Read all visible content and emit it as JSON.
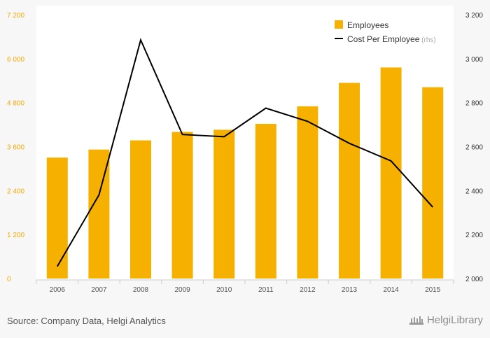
{
  "chart_data": {
    "type": "bar+line",
    "categories": [
      "2006",
      "2007",
      "2008",
      "2009",
      "2010",
      "2011",
      "2012",
      "2013",
      "2014",
      "2015"
    ],
    "series": [
      {
        "name": "Employees",
        "type": "bar",
        "axis": "left",
        "values": [
          3300,
          3520,
          3770,
          4000,
          4060,
          4220,
          4700,
          5340,
          5760,
          5220
        ]
      },
      {
        "name": "Cost Per Employee",
        "suffix": "(rhs)",
        "type": "line",
        "axis": "right",
        "values": [
          2055,
          2380,
          3085,
          2655,
          2645,
          2775,
          2715,
          2615,
          2535,
          2325
        ]
      }
    ],
    "left_axis": {
      "min": 0,
      "max": 7200,
      "ticks": [
        {
          "value": 0,
          "label": "0"
        },
        {
          "value": 1200,
          "label": "1 200"
        },
        {
          "value": 2400,
          "label": "2 400"
        },
        {
          "value": 3600,
          "label": "3 600"
        },
        {
          "value": 4800,
          "label": "4 800"
        },
        {
          "value": 6000,
          "label": "6 000"
        },
        {
          "value": 7200,
          "label": "7 200"
        }
      ]
    },
    "right_axis": {
      "min": 2000,
      "max": 3200,
      "ticks": [
        {
          "value": 2000,
          "label": "2 000"
        },
        {
          "value": 2200,
          "label": "2 200"
        },
        {
          "value": 2400,
          "label": "2 400"
        },
        {
          "value": 2600,
          "label": "2 600"
        },
        {
          "value": 2800,
          "label": "2 800"
        },
        {
          "value": 3000,
          "label": "3 000"
        },
        {
          "value": 3200,
          "label": "3 200"
        }
      ]
    },
    "legend_position": "top-right",
    "grid": false,
    "colors": {
      "bar": "#f5b000",
      "line": "#000000",
      "left_tick": "#f5a800",
      "right_tick": "#333333",
      "rhs_note": "#aaaaaa"
    }
  },
  "footer": {
    "source": "Source: Company Data, Helgi Analytics",
    "logo_text": "HelgiLibrary"
  }
}
